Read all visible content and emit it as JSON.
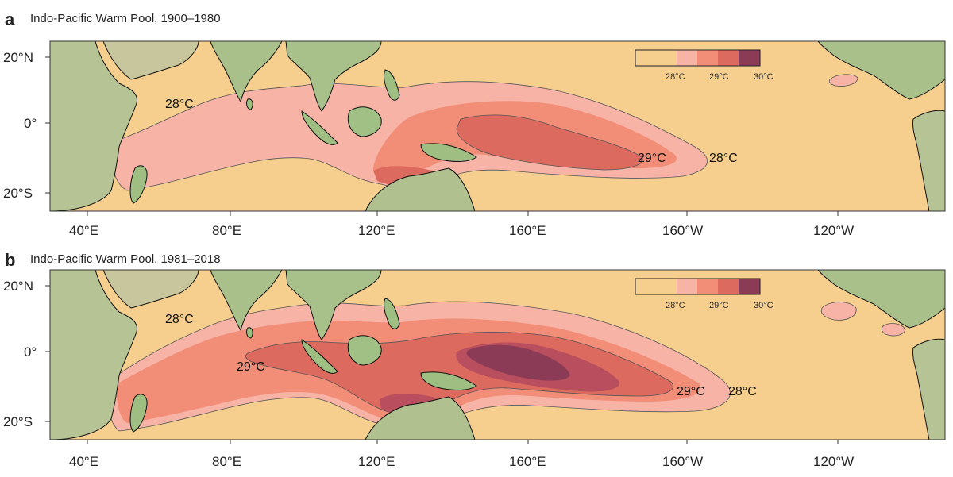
{
  "colors": {
    "ocean": "#f6cf8f",
    "t28": "#f7b3a6",
    "t285": "#f28e78",
    "t29": "#dc6a5e",
    "t295": "#b94f5e",
    "t30": "#8c3b57",
    "land_low": "#8fb678",
    "land_high": "#c9c7a3",
    "coast": "#111111"
  },
  "axis": {
    "y_ticks": [
      "20°N",
      "0°",
      "20°S"
    ],
    "x_ticks": [
      "40°E",
      "80°E",
      "120°E",
      "160°E",
      "160°W",
      "120°W"
    ]
  },
  "panels": [
    {
      "letter": "a",
      "title": "Indo-Pacific Warm Pool, 1900–1980",
      "legend": {
        "labels": [
          "28°C",
          "29°C",
          "30°C"
        ]
      },
      "contour_labels": [
        "28°C",
        "29°C",
        "28°C"
      ]
    },
    {
      "letter": "b",
      "title": "Indo-Pacific Warm Pool, 1981–2018",
      "legend": {
        "labels": [
          "28°C",
          "29°C",
          "30°C"
        ]
      },
      "contour_labels": [
        "28°C",
        "29°C",
        "29°C",
        "28°C"
      ]
    }
  ]
}
